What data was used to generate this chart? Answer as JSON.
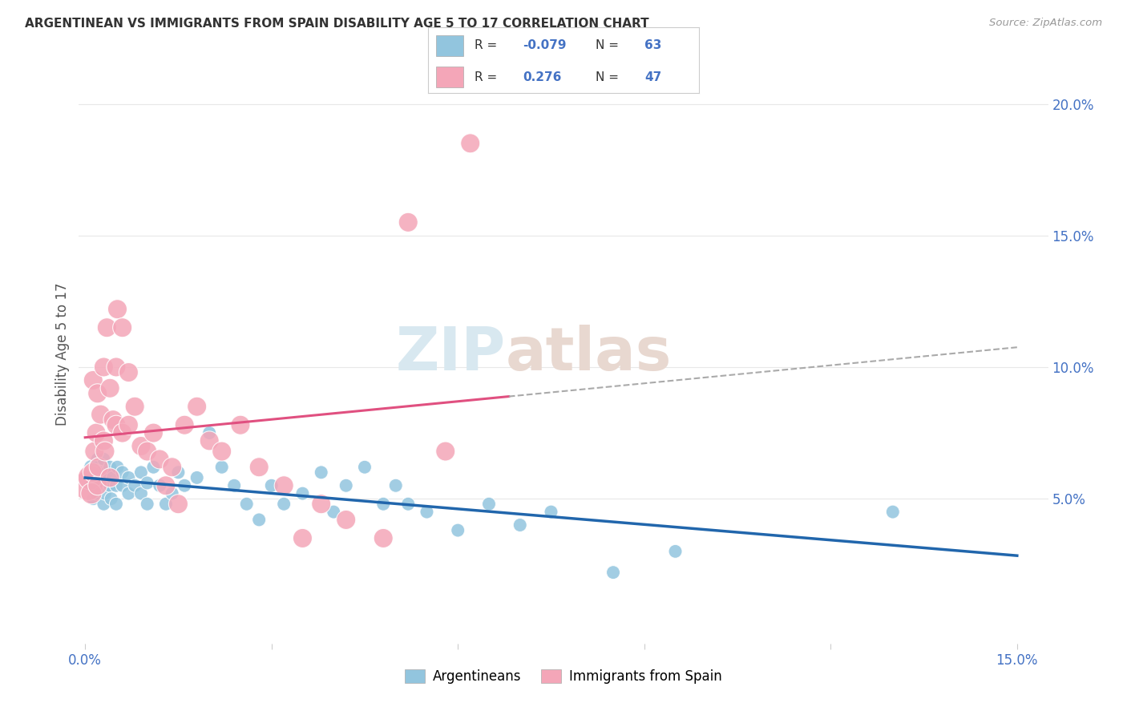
{
  "title": "ARGENTINEAN VS IMMIGRANTS FROM SPAIN DISABILITY AGE 5 TO 17 CORRELATION CHART",
  "source": "Source: ZipAtlas.com",
  "ylabel": "Disability Age 5 to 17",
  "xlim": [
    -0.001,
    0.155
  ],
  "ylim": [
    -0.005,
    0.215
  ],
  "xticks": [
    0.0,
    0.03,
    0.06,
    0.09,
    0.12,
    0.15
  ],
  "yticks": [
    0.05,
    0.1,
    0.15,
    0.2
  ],
  "xticklabels": [
    "0.0%",
    "",
    "",
    "",
    "",
    "15.0%"
  ],
  "yticklabels": [
    "5.0%",
    "10.0%",
    "15.0%",
    "20.0%"
  ],
  "legend_blue_R": "-0.079",
  "legend_blue_N": "63",
  "legend_pink_R": "0.276",
  "legend_pink_N": "47",
  "watermark_zip": "ZIP",
  "watermark_atlas": "atlas",
  "blue_color": "#92c5de",
  "pink_color": "#f4a6b8",
  "blue_line_color": "#2166ac",
  "pink_line_color": "#d6604d",
  "grid_color": "#e8e8e8",
  "argentinean_x": [
    0.0008,
    0.001,
    0.001,
    0.0012,
    0.0013,
    0.0015,
    0.0015,
    0.0018,
    0.002,
    0.002,
    0.0022,
    0.0025,
    0.003,
    0.003,
    0.003,
    0.0032,
    0.0035,
    0.004,
    0.004,
    0.0042,
    0.0045,
    0.005,
    0.005,
    0.0052,
    0.006,
    0.006,
    0.007,
    0.007,
    0.008,
    0.009,
    0.009,
    0.01,
    0.01,
    0.011,
    0.012,
    0.013,
    0.014,
    0.015,
    0.016,
    0.018,
    0.02,
    0.022,
    0.024,
    0.026,
    0.028,
    0.03,
    0.032,
    0.035,
    0.038,
    0.04,
    0.042,
    0.045,
    0.048,
    0.05,
    0.052,
    0.055,
    0.06,
    0.065,
    0.07,
    0.075,
    0.085,
    0.095,
    0.13
  ],
  "argentinean_y": [
    0.058,
    0.062,
    0.055,
    0.06,
    0.05,
    0.056,
    0.062,
    0.052,
    0.058,
    0.065,
    0.055,
    0.06,
    0.048,
    0.058,
    0.065,
    0.052,
    0.06,
    0.055,
    0.062,
    0.05,
    0.058,
    0.048,
    0.055,
    0.062,
    0.055,
    0.06,
    0.052,
    0.058,
    0.055,
    0.052,
    0.06,
    0.048,
    0.056,
    0.062,
    0.055,
    0.048,
    0.052,
    0.06,
    0.055,
    0.058,
    0.075,
    0.062,
    0.055,
    0.048,
    0.042,
    0.055,
    0.048,
    0.052,
    0.06,
    0.045,
    0.055,
    0.062,
    0.048,
    0.055,
    0.048,
    0.045,
    0.038,
    0.048,
    0.04,
    0.045,
    0.022,
    0.03,
    0.045
  ],
  "argentinean_sizes": [
    30,
    30,
    30,
    25,
    25,
    25,
    25,
    25,
    25,
    25,
    25,
    25,
    25,
    25,
    25,
    25,
    25,
    25,
    25,
    25,
    25,
    25,
    25,
    25,
    25,
    25,
    25,
    25,
    25,
    25,
    25,
    25,
    25,
    25,
    25,
    25,
    25,
    25,
    25,
    25,
    25,
    25,
    25,
    25,
    25,
    25,
    25,
    25,
    25,
    25,
    25,
    25,
    25,
    25,
    25,
    25,
    25,
    25,
    25,
    25,
    25,
    25,
    25
  ],
  "spain_x": [
    0.0005,
    0.0008,
    0.001,
    0.0012,
    0.0013,
    0.0015,
    0.0018,
    0.002,
    0.002,
    0.0022,
    0.0025,
    0.003,
    0.003,
    0.0032,
    0.0035,
    0.004,
    0.004,
    0.0045,
    0.005,
    0.005,
    0.0052,
    0.006,
    0.006,
    0.007,
    0.007,
    0.008,
    0.009,
    0.01,
    0.011,
    0.012,
    0.013,
    0.014,
    0.015,
    0.016,
    0.018,
    0.02,
    0.022,
    0.025,
    0.028,
    0.032,
    0.035,
    0.038,
    0.042,
    0.048,
    0.052,
    0.058,
    0.062
  ],
  "spain_y": [
    0.055,
    0.058,
    0.052,
    0.06,
    0.095,
    0.068,
    0.075,
    0.055,
    0.09,
    0.062,
    0.082,
    0.072,
    0.1,
    0.068,
    0.115,
    0.058,
    0.092,
    0.08,
    0.078,
    0.1,
    0.122,
    0.115,
    0.075,
    0.098,
    0.078,
    0.085,
    0.07,
    0.068,
    0.075,
    0.065,
    0.055,
    0.062,
    0.048,
    0.078,
    0.085,
    0.072,
    0.068,
    0.078,
    0.062,
    0.055,
    0.035,
    0.048,
    0.042,
    0.035,
    0.155,
    0.068,
    0.185
  ],
  "spain_sizes": [
    120,
    80,
    60,
    50,
    50,
    50,
    50,
    50,
    50,
    50,
    50,
    50,
    50,
    50,
    50,
    50,
    50,
    50,
    50,
    50,
    50,
    50,
    50,
    50,
    50,
    50,
    50,
    50,
    50,
    50,
    50,
    50,
    50,
    50,
    50,
    50,
    50,
    50,
    50,
    50,
    50,
    50,
    50,
    50,
    50,
    50,
    50
  ]
}
